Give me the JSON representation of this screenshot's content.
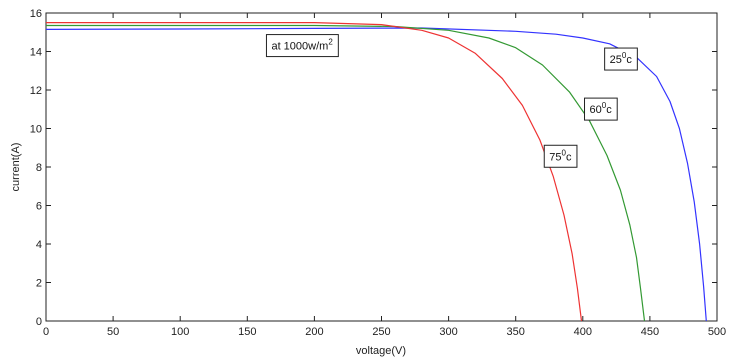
{
  "chart_data": {
    "type": "line",
    "title": "",
    "xlabel": "voltage(V)",
    "ylabel": "current(A)",
    "xlim": [
      0,
      500
    ],
    "ylim": [
      0,
      16
    ],
    "xticks": [
      0,
      50,
      100,
      150,
      200,
      250,
      300,
      350,
      400,
      450,
      500
    ],
    "yticks": [
      0,
      2,
      4,
      6,
      8,
      10,
      12,
      14,
      16
    ],
    "grid": false,
    "series": [
      {
        "name": "",
        "color": "#3333ff",
        "points": [
          [
            0,
            15.15
          ],
          [
            100,
            15.17
          ],
          [
            200,
            15.2
          ],
          [
            280,
            15.22
          ],
          [
            350,
            15.05
          ],
          [
            380,
            14.9
          ],
          [
            400,
            14.7
          ],
          [
            420,
            14.4
          ],
          [
            440,
            13.7
          ],
          [
            455,
            12.7
          ],
          [
            465,
            11.4
          ],
          [
            472,
            10.0
          ],
          [
            478,
            8.2
          ],
          [
            483,
            6.2
          ],
          [
            487,
            4.0
          ],
          [
            490,
            1.8
          ],
          [
            492,
            0
          ]
        ]
      },
      {
        "name": "",
        "color": "#339933",
        "points": [
          [
            0,
            15.35
          ],
          [
            100,
            15.35
          ],
          [
            200,
            15.35
          ],
          [
            260,
            15.3
          ],
          [
            300,
            15.1
          ],
          [
            330,
            14.7
          ],
          [
            350,
            14.2
          ],
          [
            370,
            13.3
          ],
          [
            390,
            11.9
          ],
          [
            405,
            10.4
          ],
          [
            418,
            8.6
          ],
          [
            428,
            6.8
          ],
          [
            435,
            5.0
          ],
          [
            440,
            3.3
          ],
          [
            443,
            1.7
          ],
          [
            446,
            0
          ]
        ]
      },
      {
        "name": "",
        "color": "#ee3333",
        "points": [
          [
            0,
            15.5
          ],
          [
            100,
            15.5
          ],
          [
            200,
            15.5
          ],
          [
            250,
            15.4
          ],
          [
            280,
            15.1
          ],
          [
            300,
            14.7
          ],
          [
            320,
            13.9
          ],
          [
            340,
            12.6
          ],
          [
            355,
            11.2
          ],
          [
            368,
            9.4
          ],
          [
            378,
            7.5
          ],
          [
            386,
            5.5
          ],
          [
            392,
            3.5
          ],
          [
            396,
            1.7
          ],
          [
            399,
            0
          ]
        ]
      }
    ],
    "annotations": [
      {
        "text": "at 1000w/m",
        "sup": "2",
        "suffix": "",
        "x": 168,
        "y": 14.1
      },
      {
        "text": "25",
        "sup": "0",
        "suffix": "c",
        "x": 420,
        "y": 13.4
      },
      {
        "text": "60",
        "sup": "0",
        "suffix": "c",
        "x": 405,
        "y": 10.8
      },
      {
        "text": "75",
        "sup": "0",
        "suffix": "c",
        "x": 375,
        "y": 8.35
      }
    ]
  }
}
